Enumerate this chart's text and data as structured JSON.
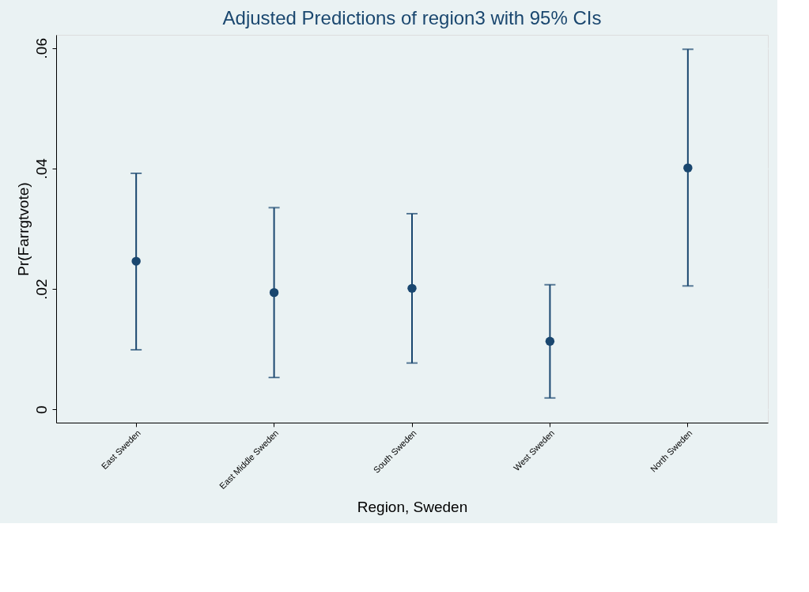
{
  "chart_data": {
    "type": "scatter",
    "title": "Adjusted Predictions of region3 with 95% CIs",
    "xlabel": "Region, Sweden",
    "ylabel": "Pr(Farrgtvote)",
    "categories": [
      "East Sweden",
      "East Middle Sweden",
      "South Sweden",
      "West Sweden",
      "North Sweden"
    ],
    "series": [
      {
        "color": "#1a476f",
        "values": [
          0.0246,
          0.0194,
          0.0201,
          0.0113,
          0.0401
        ],
        "errors": [
          [
            0.0099,
            0.0392
          ],
          [
            0.0053,
            0.0335
          ],
          [
            0.0077,
            0.0325
          ],
          [
            0.0019,
            0.0207
          ],
          [
            0.0205,
            0.0598
          ]
        ]
      }
    ],
    "ylim": [
      -0.0022,
      0.0622
    ],
    "yticks": [
      {
        "value": 0,
        "label": "0"
      },
      {
        "value": 0.02,
        "label": ".02"
      },
      {
        "value": 0.04,
        "label": ".04"
      },
      {
        "value": 0.06,
        "label": ".06"
      }
    ],
    "grid": "y",
    "marker": "circle"
  }
}
